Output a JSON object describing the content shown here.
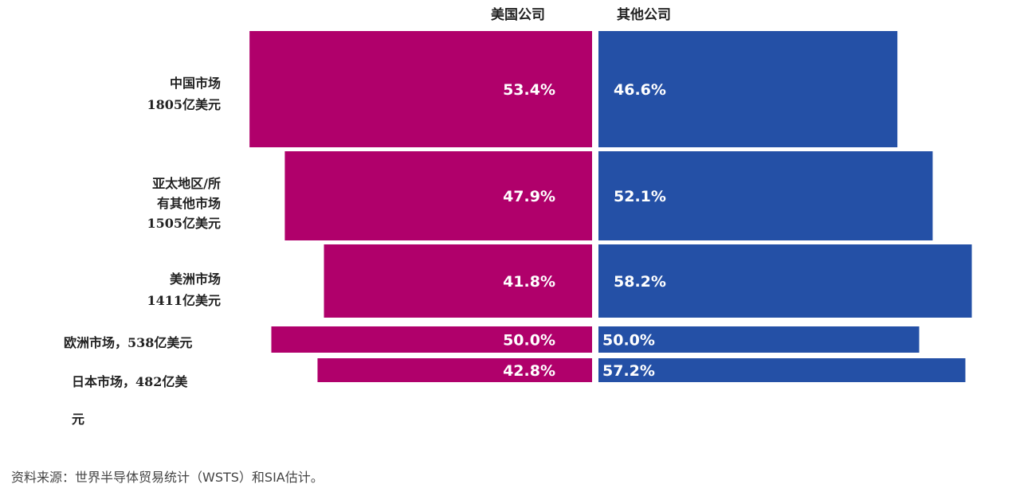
{
  "chart_data": {
    "type": "bar",
    "stacked_percent": true,
    "series": [
      {
        "name": "美国公司",
        "color": "#b0006b",
        "values": [
          53.4,
          47.9,
          41.8,
          50.0,
          42.8
        ]
      },
      {
        "name": "其他公司",
        "color": "#2450a6",
        "values": [
          46.6,
          52.1,
          58.2,
          50.0,
          57.2
        ]
      }
    ],
    "categories": [
      {
        "lines": [
          "中国市场",
          "1805亿美元"
        ],
        "market_size": 1805
      },
      {
        "lines": [
          "亚太地区/所",
          "有其他市场",
          "1505亿美元"
        ],
        "market_size": 1505
      },
      {
        "lines": [
          "美洲市场",
          "1411亿美元"
        ],
        "market_size": 1411
      },
      {
        "lines": [
          "欧洲市场，538亿美元"
        ],
        "market_size": 538
      },
      {
        "lines": [
          "日本市场，482亿美",
          "元"
        ],
        "market_size": 482
      }
    ],
    "value_labels": {
      "us": [
        "53.4%",
        "47.9%",
        "41.8%",
        "50.0%",
        "42.8%"
      ],
      "other": [
        "46.6%",
        "52.1%",
        "58.2%",
        "50.0%",
        "57.2%"
      ]
    }
  },
  "source": "资料来源：世界半导体贸易统计（WSTS）和SIA估计。"
}
